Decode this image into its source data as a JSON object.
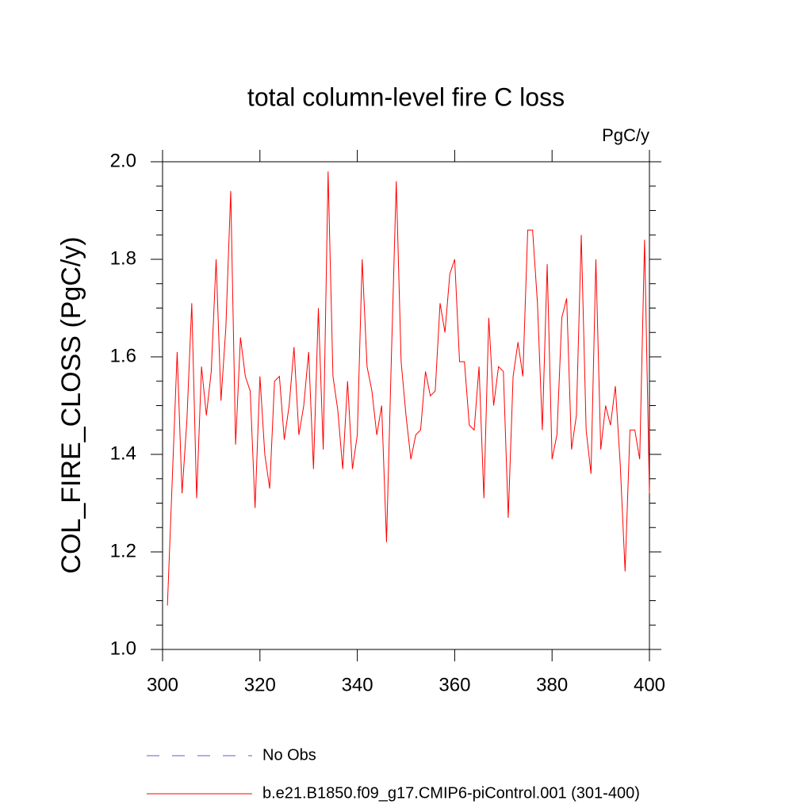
{
  "chart_data": {
    "type": "line",
    "title": "total column-level fire C loss",
    "unit_label": "PgC/y",
    "y_label": "COL_FIRE_CLOSS  (PgC/y)",
    "x": [
      301,
      302,
      303,
      304,
      305,
      306,
      307,
      308,
      309,
      310,
      311,
      312,
      313,
      314,
      315,
      316,
      317,
      318,
      319,
      320,
      321,
      322,
      323,
      324,
      325,
      326,
      327,
      328,
      329,
      330,
      331,
      332,
      333,
      334,
      335,
      336,
      337,
      338,
      339,
      340,
      341,
      342,
      343,
      344,
      345,
      346,
      347,
      348,
      349,
      350,
      351,
      352,
      353,
      354,
      355,
      356,
      357,
      358,
      359,
      360,
      361,
      362,
      363,
      364,
      365,
      366,
      367,
      368,
      369,
      370,
      371,
      372,
      373,
      374,
      375,
      376,
      377,
      378,
      379,
      380,
      381,
      382,
      383,
      384,
      385,
      386,
      387,
      388,
      389,
      390,
      391,
      392,
      393,
      394,
      395,
      396,
      397,
      398,
      399,
      400
    ],
    "series": [
      {
        "name": "b.e21.B1850.f09_g17.CMIP6-piControl.001 (301-400)",
        "color": "#ff0000",
        "values": [
          1.09,
          1.35,
          1.61,
          1.32,
          1.47,
          1.71,
          1.31,
          1.58,
          1.48,
          1.57,
          1.8,
          1.51,
          1.66,
          1.94,
          1.42,
          1.64,
          1.56,
          1.53,
          1.29,
          1.56,
          1.4,
          1.33,
          1.55,
          1.56,
          1.43,
          1.5,
          1.62,
          1.44,
          1.5,
          1.61,
          1.37,
          1.7,
          1.41,
          1.98,
          1.56,
          1.49,
          1.37,
          1.55,
          1.37,
          1.44,
          1.8,
          1.58,
          1.53,
          1.44,
          1.5,
          1.22,
          1.6,
          1.96,
          1.59,
          1.48,
          1.39,
          1.44,
          1.45,
          1.57,
          1.52,
          1.53,
          1.71,
          1.65,
          1.77,
          1.8,
          1.59,
          1.59,
          1.46,
          1.45,
          1.58,
          1.31,
          1.68,
          1.5,
          1.58,
          1.57,
          1.27,
          1.56,
          1.63,
          1.56,
          1.86,
          1.86,
          1.71,
          1.45,
          1.79,
          1.39,
          1.44,
          1.68,
          1.72,
          1.41,
          1.48,
          1.85,
          1.45,
          1.36,
          1.8,
          1.41,
          1.5,
          1.46,
          1.54,
          1.38,
          1.16,
          1.45,
          1.45,
          1.39,
          1.84,
          1.32
        ]
      }
    ],
    "legend": [
      {
        "name": "No Obs",
        "color": "#6a5acd",
        "dashed": true
      },
      {
        "name": "b.e21.B1850.f09_g17.CMIP6-piControl.001 (301-400)",
        "color": "#ff0000",
        "dashed": false
      }
    ],
    "xlim": [
      300,
      400
    ],
    "xticks": [
      300,
      320,
      340,
      360,
      380,
      400
    ],
    "ylim": [
      1.0,
      2.0
    ],
    "yticks": [
      {
        "value": 1.0,
        "label": "1.0"
      },
      1.2,
      1.4,
      1.6,
      1.8,
      {
        "value": 2.0,
        "label": "2.0"
      }
    ],
    "yminorticks": [
      1.05,
      1.1,
      1.15,
      1.25,
      1.3,
      1.35,
      1.45,
      1.5,
      1.55,
      1.65,
      1.7,
      1.75,
      1.85,
      1.9,
      1.95
    ]
  }
}
